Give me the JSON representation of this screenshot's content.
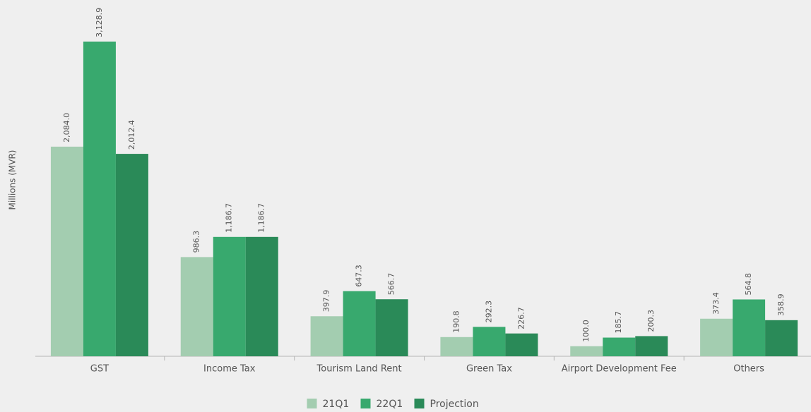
{
  "chart_data": {
    "type": "bar",
    "y_label": "Millions (MVR)",
    "categories": [
      "GST",
      "Income Tax",
      "Tourism Land Rent",
      "Green Tax",
      "Airport Development Fee",
      "Others"
    ],
    "series": [
      {
        "name": "21Q1",
        "color": "#a3cdb0",
        "values": [
          2084.0,
          986.3,
          397.9,
          190.8,
          100.0,
          373.4
        ],
        "value_labels": [
          "2,084.0",
          "986.3",
          "397.9",
          "190.8",
          "100.0",
          "373.4"
        ]
      },
      {
        "name": "22Q1",
        "color": "#38a96e",
        "values": [
          3128.9,
          1186.7,
          647.3,
          292.3,
          185.7,
          564.8
        ],
        "value_labels": [
          "3,128.9",
          "1,186.7",
          "647.3",
          "292.3",
          "185.7",
          "564.8"
        ]
      },
      {
        "name": "Projection",
        "color": "#2a8a58",
        "values": [
          2012.4,
          1186.7,
          566.7,
          226.7,
          200.3,
          358.9
        ],
        "value_labels": [
          "2,012.4",
          "1,186.7",
          "566.7",
          "226.7",
          "200.3",
          "358.9"
        ]
      }
    ],
    "ylim": [
      0,
      3500
    ],
    "legend": "bottom"
  }
}
